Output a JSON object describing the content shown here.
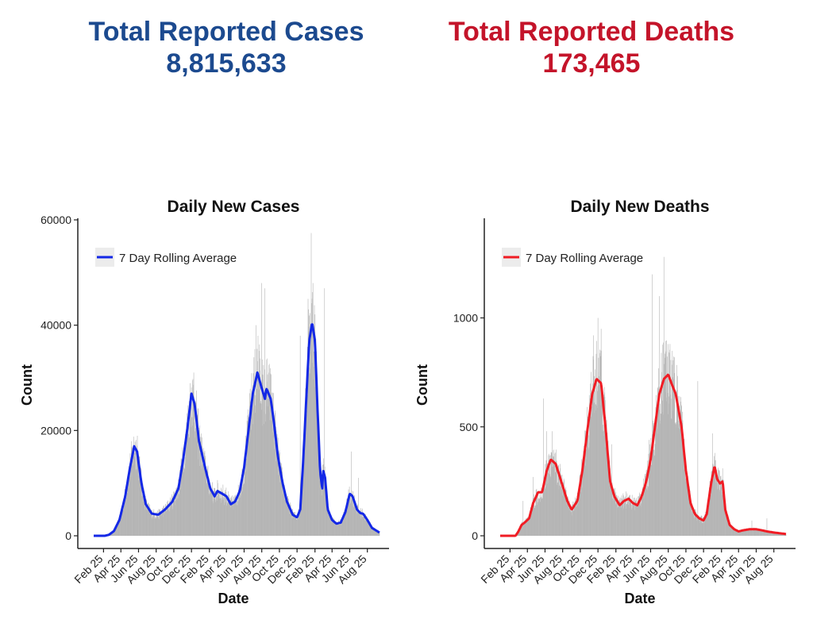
{
  "headline": {
    "cases": {
      "label": "Total Reported Cases",
      "value": "8,815,633"
    },
    "deaths": {
      "label": "Total Reported Deaths",
      "value": "173,465"
    }
  },
  "colors": {
    "cases_line": "#1428e6",
    "deaths_line": "#f01c24",
    "bars": "#b4b4b4",
    "cases_headline": "#1c4a8f",
    "deaths_headline": "#c4142a"
  },
  "chart_data": [
    {
      "type": "bar",
      "title": "Daily New Cases",
      "xlabel": "Date",
      "ylabel": "Count",
      "ylim": [
        0,
        60000
      ],
      "yticks": [
        0,
        20000,
        40000,
        60000
      ],
      "xlim": [
        "2020-01-22",
        "2022-10-06"
      ],
      "xtick_labels": [
        "Feb 25",
        "Apr 25",
        "Jun 25",
        "Aug 25",
        "Oct 25",
        "Dec 25",
        "Feb 25",
        "Apr 25",
        "Jun 25",
        "Aug 25",
        "Oct 25",
        "Dec 25",
        "Feb 25",
        "Apr 25",
        "Jun 25",
        "Aug 25"
      ],
      "xtick_dates": [
        "2020-02-25",
        "2020-04-25",
        "2020-06-25",
        "2020-08-25",
        "2020-10-25",
        "2020-12-25",
        "2021-02-25",
        "2021-04-25",
        "2021-06-25",
        "2021-08-25",
        "2021-10-25",
        "2021-12-25",
        "2022-02-25",
        "2022-04-25",
        "2022-06-25",
        "2022-08-25"
      ],
      "legend": {
        "label": "7 Day Rolling Average",
        "position": "top-left"
      },
      "grid": false,
      "series": [
        {
          "kind": "line",
          "name": "7 Day Rolling Average",
          "points": [
            [
              "2020-01-22",
              0
            ],
            [
              "2020-03-01",
              0
            ],
            [
              "2020-03-15",
              200
            ],
            [
              "2020-04-01",
              900
            ],
            [
              "2020-04-20",
              3000
            ],
            [
              "2020-05-10",
              7500
            ],
            [
              "2020-05-25",
              12500
            ],
            [
              "2020-06-10",
              17000
            ],
            [
              "2020-06-20",
              16000
            ],
            [
              "2020-07-05",
              10000
            ],
            [
              "2020-07-20",
              6000
            ],
            [
              "2020-08-10",
              4200
            ],
            [
              "2020-09-01",
              4000
            ],
            [
              "2020-09-25",
              5000
            ],
            [
              "2020-10-20",
              6500
            ],
            [
              "2020-11-10",
              9000
            ],
            [
              "2020-11-25",
              14000
            ],
            [
              "2020-12-10",
              20000
            ],
            [
              "2020-12-25",
              27000
            ],
            [
              "2021-01-05",
              25000
            ],
            [
              "2021-01-20",
              18000
            ],
            [
              "2021-02-10",
              13000
            ],
            [
              "2021-02-28",
              9000
            ],
            [
              "2021-03-15",
              7500
            ],
            [
              "2021-03-25",
              8500
            ],
            [
              "2021-04-10",
              8000
            ],
            [
              "2021-04-25",
              7500
            ],
            [
              "2021-05-10",
              6000
            ],
            [
              "2021-05-25",
              6500
            ],
            [
              "2021-06-10",
              8500
            ],
            [
              "2021-06-25",
              13000
            ],
            [
              "2021-07-10",
              20000
            ],
            [
              "2021-07-25",
              27000
            ],
            [
              "2021-08-10",
              31000
            ],
            [
              "2021-08-25",
              28000
            ],
            [
              "2021-09-05",
              26000
            ],
            [
              "2021-09-10",
              28000
            ],
            [
              "2021-09-25",
              26000
            ],
            [
              "2021-10-05",
              22000
            ],
            [
              "2021-10-20",
              15000
            ],
            [
              "2021-11-05",
              10000
            ],
            [
              "2021-11-20",
              6500
            ],
            [
              "2021-12-10",
              4000
            ],
            [
              "2021-12-25",
              3500
            ],
            [
              "2022-01-05",
              5000
            ],
            [
              "2022-01-15",
              14000
            ],
            [
              "2022-01-25",
              25000
            ],
            [
              "2022-02-05",
              37000
            ],
            [
              "2022-02-15",
              40500
            ],
            [
              "2022-02-25",
              37000
            ],
            [
              "2022-03-05",
              25000
            ],
            [
              "2022-03-15",
              12000
            ],
            [
              "2022-03-22",
              9000
            ],
            [
              "2022-03-25",
              12500
            ],
            [
              "2022-04-01",
              11000
            ],
            [
              "2022-04-10",
              5000
            ],
            [
              "2022-04-25",
              3000
            ],
            [
              "2022-05-10",
              2300
            ],
            [
              "2022-05-25",
              2500
            ],
            [
              "2022-06-10",
              4500
            ],
            [
              "2022-06-25",
              8000
            ],
            [
              "2022-07-05",
              7500
            ],
            [
              "2022-07-20",
              5000
            ],
            [
              "2022-08-01",
              4300
            ],
            [
              "2022-08-10",
              4200
            ],
            [
              "2022-08-25",
              3000
            ],
            [
              "2022-09-10",
              1500
            ],
            [
              "2022-10-06",
              600
            ]
          ]
        },
        {
          "kind": "bar",
          "name": "Daily New Cases",
          "note": "daily counts with spikes",
          "spikes": [
            [
              "2020-06-21",
              19000
            ],
            [
              "2021-01-02",
              31000
            ],
            [
              "2021-06-25",
              10000
            ],
            [
              "2021-08-05",
              40000
            ],
            [
              "2021-08-12",
              38000
            ],
            [
              "2021-08-25",
              48000
            ],
            [
              "2021-09-05",
              47000
            ],
            [
              "2022-01-05",
              38000
            ],
            [
              "2022-02-01",
              45000
            ],
            [
              "2022-02-12",
              57500
            ],
            [
              "2022-02-18",
              48000
            ],
            [
              "2022-03-30",
              47000
            ],
            [
              "2022-07-01",
              16000
            ],
            [
              "2022-07-25",
              11000
            ]
          ]
        }
      ]
    },
    {
      "type": "bar",
      "title": "Daily New Deaths",
      "xlabel": "Date",
      "ylabel": "Count",
      "ylim": [
        0,
        1450
      ],
      "yticks": [
        0,
        500,
        1000
      ],
      "xlim": [
        "2020-01-22",
        "2022-10-06"
      ],
      "xtick_labels": [
        "Feb 25",
        "Apr 25",
        "Jun 25",
        "Aug 25",
        "Oct 25",
        "Dec 25",
        "Feb 25",
        "Apr 25",
        "Jun 25",
        "Aug 25",
        "Oct 25",
        "Dec 25",
        "Feb 25",
        "Apr 25",
        "Jun 25",
        "Aug 25"
      ],
      "xtick_dates": [
        "2020-02-25",
        "2020-04-25",
        "2020-06-25",
        "2020-08-25",
        "2020-10-25",
        "2020-12-25",
        "2021-02-25",
        "2021-04-25",
        "2021-06-25",
        "2021-08-25",
        "2021-10-25",
        "2021-12-25",
        "2022-02-25",
        "2022-04-25",
        "2022-06-25",
        "2022-08-25"
      ],
      "legend": {
        "label": "7 Day Rolling Average",
        "position": "top-left"
      },
      "grid": false,
      "series": [
        {
          "kind": "line",
          "name": "7 Day Rolling Average",
          "points": [
            [
              "2020-01-22",
              0
            ],
            [
              "2020-03-15",
              0
            ],
            [
              "2020-03-25",
              20
            ],
            [
              "2020-04-05",
              50
            ],
            [
              "2020-04-15",
              60
            ],
            [
              "2020-05-01",
              80
            ],
            [
              "2020-05-15",
              150
            ],
            [
              "2020-06-01",
              200
            ],
            [
              "2020-06-15",
              200
            ],
            [
              "2020-07-01",
              300
            ],
            [
              "2020-07-15",
              350
            ],
            [
              "2020-08-01",
              330
            ],
            [
              "2020-08-20",
              250
            ],
            [
              "2020-09-10",
              160
            ],
            [
              "2020-09-25",
              120
            ],
            [
              "2020-10-15",
              160
            ],
            [
              "2020-11-01",
              300
            ],
            [
              "2020-11-20",
              500
            ],
            [
              "2020-12-05",
              650
            ],
            [
              "2020-12-20",
              720
            ],
            [
              "2021-01-05",
              700
            ],
            [
              "2021-01-20",
              500
            ],
            [
              "2021-02-05",
              250
            ],
            [
              "2021-02-20",
              180
            ],
            [
              "2021-03-10",
              140
            ],
            [
              "2021-03-25",
              160
            ],
            [
              "2021-04-10",
              170
            ],
            [
              "2021-04-25",
              150
            ],
            [
              "2021-05-10",
              140
            ],
            [
              "2021-05-25",
              180
            ],
            [
              "2021-06-10",
              250
            ],
            [
              "2021-06-25",
              350
            ],
            [
              "2021-07-10",
              500
            ],
            [
              "2021-07-25",
              650
            ],
            [
              "2021-08-10",
              720
            ],
            [
              "2021-08-25",
              740
            ],
            [
              "2021-09-05",
              700
            ],
            [
              "2021-09-20",
              650
            ],
            [
              "2021-10-10",
              500
            ],
            [
              "2021-10-25",
              300
            ],
            [
              "2021-11-10",
              150
            ],
            [
              "2021-11-25",
              100
            ],
            [
              "2021-12-10",
              80
            ],
            [
              "2021-12-25",
              70
            ],
            [
              "2022-01-05",
              100
            ],
            [
              "2022-01-20",
              240
            ],
            [
              "2022-02-01",
              320
            ],
            [
              "2022-02-10",
              260
            ],
            [
              "2022-02-20",
              240
            ],
            [
              "2022-03-01",
              250
            ],
            [
              "2022-03-10",
              120
            ],
            [
              "2022-03-25",
              50
            ],
            [
              "2022-04-10",
              30
            ],
            [
              "2022-04-25",
              20
            ],
            [
              "2022-05-10",
              25
            ],
            [
              "2022-06-01",
              30
            ],
            [
              "2022-06-25",
              30
            ],
            [
              "2022-07-15",
              25
            ],
            [
              "2022-08-01",
              20
            ],
            [
              "2022-08-25",
              15
            ],
            [
              "2022-10-06",
              8
            ]
          ]
        },
        {
          "kind": "bar",
          "name": "Daily New Deaths",
          "note": "daily counts with spikes",
          "spikes": [
            [
              "2020-04-10",
              160
            ],
            [
              "2020-05-15",
              270
            ],
            [
              "2020-06-20",
              630
            ],
            [
              "2020-07-01",
              480
            ],
            [
              "2020-07-20",
              480
            ],
            [
              "2020-12-10",
              920
            ],
            [
              "2020-12-25",
              1000
            ],
            [
              "2021-01-05",
              950
            ],
            [
              "2021-02-10",
              420
            ],
            [
              "2021-06-20",
              440
            ],
            [
              "2021-07-01",
              1200
            ],
            [
              "2021-07-25",
              1100
            ],
            [
              "2021-08-10",
              1280
            ],
            [
              "2021-08-25",
              880
            ],
            [
              "2021-12-05",
              710
            ],
            [
              "2022-01-25",
              470
            ],
            [
              "2022-02-15",
              300
            ],
            [
              "2022-06-10",
              70
            ],
            [
              "2022-08-01",
              80
            ]
          ]
        }
      ]
    }
  ]
}
